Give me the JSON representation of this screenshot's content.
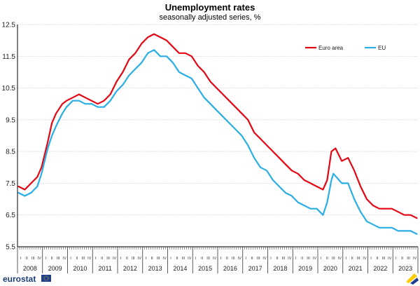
{
  "chart_data": {
    "type": "line",
    "title": "Unemployment rates",
    "subtitle": "seasonally adjusted series, %",
    "xlabel": "",
    "ylabel": "",
    "ylim": [
      5.5,
      12.5
    ],
    "y_ticks": [
      "5.5",
      "6.5",
      "7.5",
      "8.5",
      "9.5",
      "10.5",
      "11.5",
      "12.5"
    ],
    "grid": "horizontal",
    "legend_position": "top-right",
    "x_start": "2008-01",
    "x_end": "2023-12",
    "quarter_labels": [
      "I",
      "II",
      "III",
      "IV"
    ],
    "years": [
      "2008",
      "2009",
      "2010",
      "2011",
      "2012",
      "2013",
      "2014",
      "2015",
      "2016",
      "2017",
      "2018",
      "2019",
      "2020",
      "2021",
      "2022",
      "2023"
    ],
    "series": [
      {
        "name": "Euro area",
        "color": "#e30613",
        "points": [
          [
            "2008-01",
            7.4
          ],
          [
            "2008-04",
            7.3
          ],
          [
            "2008-07",
            7.5
          ],
          [
            "2008-10",
            7.7
          ],
          [
            "2008-12",
            8.0
          ],
          [
            "2009-03",
            8.8
          ],
          [
            "2009-05",
            9.4
          ],
          [
            "2009-07",
            9.7
          ],
          [
            "2009-10",
            10.0
          ],
          [
            "2009-12",
            10.1
          ],
          [
            "2010-03",
            10.2
          ],
          [
            "2010-06",
            10.3
          ],
          [
            "2010-09",
            10.2
          ],
          [
            "2010-12",
            10.1
          ],
          [
            "2011-03",
            10.0
          ],
          [
            "2011-06",
            10.1
          ],
          [
            "2011-09",
            10.3
          ],
          [
            "2011-12",
            10.7
          ],
          [
            "2012-03",
            11.0
          ],
          [
            "2012-06",
            11.4
          ],
          [
            "2012-09",
            11.6
          ],
          [
            "2012-12",
            11.9
          ],
          [
            "2013-03",
            12.1
          ],
          [
            "2013-06",
            12.2
          ],
          [
            "2013-09",
            12.1
          ],
          [
            "2013-12",
            12.0
          ],
          [
            "2014-03",
            11.8
          ],
          [
            "2014-06",
            11.6
          ],
          [
            "2014-09",
            11.6
          ],
          [
            "2014-12",
            11.5
          ],
          [
            "2015-03",
            11.2
          ],
          [
            "2015-06",
            11.0
          ],
          [
            "2015-09",
            10.7
          ],
          [
            "2015-12",
            10.5
          ],
          [
            "2016-03",
            10.3
          ],
          [
            "2016-06",
            10.1
          ],
          [
            "2016-09",
            9.9
          ],
          [
            "2016-12",
            9.7
          ],
          [
            "2017-03",
            9.5
          ],
          [
            "2017-06",
            9.1
          ],
          [
            "2017-09",
            8.9
          ],
          [
            "2017-12",
            8.7
          ],
          [
            "2018-03",
            8.5
          ],
          [
            "2018-06",
            8.3
          ],
          [
            "2018-09",
            8.1
          ],
          [
            "2018-12",
            7.9
          ],
          [
            "2019-03",
            7.8
          ],
          [
            "2019-06",
            7.6
          ],
          [
            "2019-09",
            7.5
          ],
          [
            "2019-12",
            7.4
          ],
          [
            "2020-03",
            7.3
          ],
          [
            "2020-05",
            7.6
          ],
          [
            "2020-07",
            8.5
          ],
          [
            "2020-09",
            8.6
          ],
          [
            "2020-12",
            8.2
          ],
          [
            "2021-03",
            8.3
          ],
          [
            "2021-06",
            7.9
          ],
          [
            "2021-09",
            7.4
          ],
          [
            "2021-12",
            7.0
          ],
          [
            "2022-03",
            6.8
          ],
          [
            "2022-06",
            6.7
          ],
          [
            "2022-09",
            6.7
          ],
          [
            "2022-12",
            6.7
          ],
          [
            "2023-03",
            6.6
          ],
          [
            "2023-06",
            6.5
          ],
          [
            "2023-09",
            6.5
          ],
          [
            "2023-12",
            6.4
          ]
        ]
      },
      {
        "name": "EU",
        "color": "#29aee5",
        "points": [
          [
            "2008-01",
            7.2
          ],
          [
            "2008-04",
            7.1
          ],
          [
            "2008-07",
            7.2
          ],
          [
            "2008-10",
            7.4
          ],
          [
            "2008-12",
            7.8
          ],
          [
            "2009-03",
            8.6
          ],
          [
            "2009-05",
            9.0
          ],
          [
            "2009-07",
            9.3
          ],
          [
            "2009-10",
            9.7
          ],
          [
            "2009-12",
            9.9
          ],
          [
            "2010-03",
            10.1
          ],
          [
            "2010-06",
            10.1
          ],
          [
            "2010-09",
            10.0
          ],
          [
            "2010-12",
            10.0
          ],
          [
            "2011-03",
            9.9
          ],
          [
            "2011-06",
            9.9
          ],
          [
            "2011-09",
            10.1
          ],
          [
            "2011-12",
            10.4
          ],
          [
            "2012-03",
            10.6
          ],
          [
            "2012-06",
            10.9
          ],
          [
            "2012-09",
            11.1
          ],
          [
            "2012-12",
            11.3
          ],
          [
            "2013-03",
            11.6
          ],
          [
            "2013-06",
            11.7
          ],
          [
            "2013-09",
            11.5
          ],
          [
            "2013-12",
            11.5
          ],
          [
            "2014-03",
            11.3
          ],
          [
            "2014-06",
            11.0
          ],
          [
            "2014-09",
            10.9
          ],
          [
            "2014-12",
            10.8
          ],
          [
            "2015-03",
            10.5
          ],
          [
            "2015-06",
            10.2
          ],
          [
            "2015-09",
            10.0
          ],
          [
            "2015-12",
            9.8
          ],
          [
            "2016-03",
            9.6
          ],
          [
            "2016-06",
            9.4
          ],
          [
            "2016-09",
            9.2
          ],
          [
            "2016-12",
            9.0
          ],
          [
            "2017-03",
            8.7
          ],
          [
            "2017-06",
            8.3
          ],
          [
            "2017-09",
            8.0
          ],
          [
            "2017-12",
            7.9
          ],
          [
            "2018-03",
            7.6
          ],
          [
            "2018-06",
            7.4
          ],
          [
            "2018-09",
            7.2
          ],
          [
            "2018-12",
            7.1
          ],
          [
            "2019-03",
            6.9
          ],
          [
            "2019-06",
            6.8
          ],
          [
            "2019-09",
            6.7
          ],
          [
            "2019-12",
            6.7
          ],
          [
            "2020-03",
            6.5
          ],
          [
            "2020-05",
            6.9
          ],
          [
            "2020-07",
            7.6
          ],
          [
            "2020-08",
            7.8
          ],
          [
            "2020-12",
            7.5
          ],
          [
            "2021-03",
            7.5
          ],
          [
            "2021-06",
            7.0
          ],
          [
            "2021-09",
            6.6
          ],
          [
            "2021-12",
            6.3
          ],
          [
            "2022-03",
            6.2
          ],
          [
            "2022-06",
            6.1
          ],
          [
            "2022-09",
            6.1
          ],
          [
            "2022-12",
            6.1
          ],
          [
            "2023-03",
            6.0
          ],
          [
            "2023-06",
            6.0
          ],
          [
            "2023-09",
            6.0
          ],
          [
            "2023-12",
            5.9
          ]
        ]
      }
    ]
  },
  "footer": {
    "logo_text": "eurostat",
    "logo_icon": "eu-flag-icon"
  }
}
